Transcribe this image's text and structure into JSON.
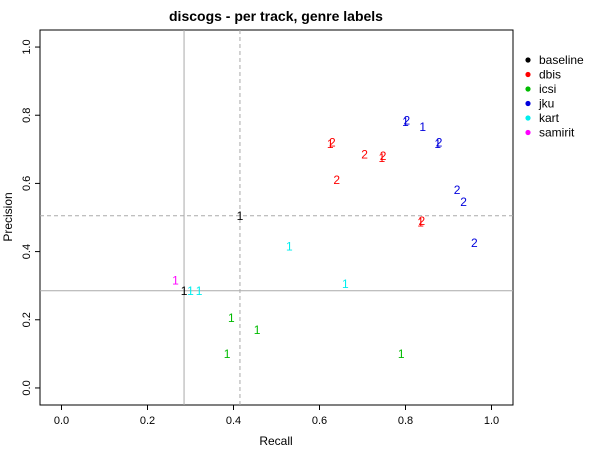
{
  "chart_data": {
    "type": "scatter",
    "title": "discogs - per track, genre labels",
    "xlabel": "Recall",
    "ylabel": "Precision",
    "xlim": [
      -0.05,
      1.05
    ],
    "ylim": [
      -0.05,
      1.05
    ],
    "xticks": [
      "0.0",
      "0.2",
      "0.4",
      "0.6",
      "0.8",
      "1.0"
    ],
    "yticks": [
      "0.0",
      "0.2",
      "0.4",
      "0.6",
      "0.8",
      "1.0"
    ],
    "legend_position": "right",
    "grid": false,
    "reference_lines": [
      {
        "orientation": "vertical",
        "value": 0.285,
        "style": "solid",
        "color": "#aaaaaa"
      },
      {
        "orientation": "horizontal",
        "value": 0.285,
        "style": "solid",
        "color": "#aaaaaa"
      },
      {
        "orientation": "vertical",
        "value": 0.415,
        "style": "dashed",
        "color": "#aaaaaa"
      },
      {
        "orientation": "horizontal",
        "value": 0.505,
        "style": "dashed",
        "color": "#aaaaaa"
      }
    ],
    "series": [
      {
        "name": "baseline",
        "color": "#000000",
        "points": [
          {
            "x": 0.285,
            "y": 0.285,
            "label": "1"
          },
          {
            "x": 0.415,
            "y": 0.505,
            "label": "1"
          }
        ]
      },
      {
        "name": "dbis",
        "color": "#ff0000",
        "points": [
          {
            "x": 0.625,
            "y": 0.715,
            "label": "1"
          },
          {
            "x": 0.63,
            "y": 0.72,
            "label": "2"
          },
          {
            "x": 0.64,
            "y": 0.61,
            "label": "2"
          },
          {
            "x": 0.705,
            "y": 0.685,
            "label": "2"
          },
          {
            "x": 0.745,
            "y": 0.675,
            "label": "1"
          },
          {
            "x": 0.748,
            "y": 0.68,
            "label": "2"
          },
          {
            "x": 0.835,
            "y": 0.485,
            "label": "1"
          },
          {
            "x": 0.838,
            "y": 0.49,
            "label": "2"
          }
        ]
      },
      {
        "name": "icsi",
        "color": "#00bb00",
        "points": [
          {
            "x": 0.395,
            "y": 0.205,
            "label": "1"
          },
          {
            "x": 0.455,
            "y": 0.17,
            "label": "1"
          },
          {
            "x": 0.385,
            "y": 0.1,
            "label": "1"
          },
          {
            "x": 0.79,
            "y": 0.1,
            "label": "1"
          }
        ]
      },
      {
        "name": "jku",
        "color": "#0000dd",
        "points": [
          {
            "x": 0.8,
            "y": 0.78,
            "label": "1"
          },
          {
            "x": 0.803,
            "y": 0.785,
            "label": "2"
          },
          {
            "x": 0.84,
            "y": 0.765,
            "label": "1"
          },
          {
            "x": 0.875,
            "y": 0.715,
            "label": "1"
          },
          {
            "x": 0.878,
            "y": 0.72,
            "label": "2"
          },
          {
            "x": 0.92,
            "y": 0.58,
            "label": "2"
          },
          {
            "x": 0.935,
            "y": 0.545,
            "label": "2"
          },
          {
            "x": 0.96,
            "y": 0.425,
            "label": "2"
          }
        ]
      },
      {
        "name": "kart",
        "color": "#00eeee",
        "points": [
          {
            "x": 0.3,
            "y": 0.285,
            "label": "1"
          },
          {
            "x": 0.32,
            "y": 0.285,
            "label": "1"
          },
          {
            "x": 0.53,
            "y": 0.415,
            "label": "1"
          },
          {
            "x": 0.66,
            "y": 0.305,
            "label": "1"
          }
        ]
      },
      {
        "name": "samirit",
        "color": "#ff00ff",
        "points": [
          {
            "x": 0.265,
            "y": 0.315,
            "label": "1"
          }
        ]
      }
    ]
  }
}
